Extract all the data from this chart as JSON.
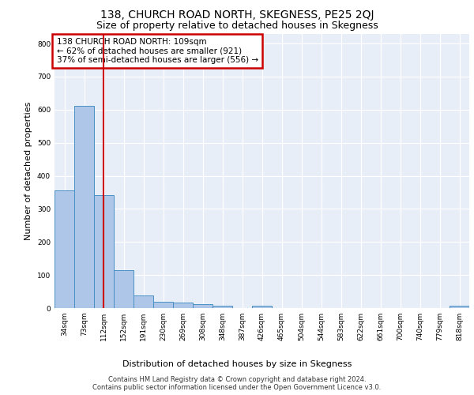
{
  "title": "138, CHURCH ROAD NORTH, SKEGNESS, PE25 2QJ",
  "subtitle": "Size of property relative to detached houses in Skegness",
  "xlabel": "Distribution of detached houses by size in Skegness",
  "ylabel": "Number of detached properties",
  "footer_line1": "Contains HM Land Registry data © Crown copyright and database right 2024.",
  "footer_line2": "Contains public sector information licensed under the Open Government Licence v3.0.",
  "annotation_line1": "138 CHURCH ROAD NORTH: 109sqm",
  "annotation_line2": "← 62% of detached houses are smaller (921)",
  "annotation_line3": "37% of semi-detached houses are larger (556) →",
  "bar_labels": [
    "34sqm",
    "73sqm",
    "112sqm",
    "152sqm",
    "191sqm",
    "230sqm",
    "269sqm",
    "308sqm",
    "348sqm",
    "387sqm",
    "426sqm",
    "465sqm",
    "504sqm",
    "544sqm",
    "583sqm",
    "622sqm",
    "661sqm",
    "700sqm",
    "740sqm",
    "779sqm",
    "818sqm"
  ],
  "bar_values": [
    357,
    612,
    341,
    115,
    38,
    20,
    17,
    12,
    7,
    0,
    7,
    0,
    0,
    0,
    0,
    0,
    0,
    0,
    0,
    0,
    7
  ],
  "bar_color": "#aec6e8",
  "bar_edge_color": "#4a90c4",
  "property_line_x": 1.97,
  "ylim": [
    0,
    830
  ],
  "plot_bg_color": "#e8eef8",
  "grid_color": "#ffffff",
  "annotation_box_edge_color": "#cc0000",
  "red_line_color": "#cc0000",
  "title_fontsize": 10,
  "subtitle_fontsize": 9,
  "ylabel_fontsize": 8,
  "xlabel_fontsize": 8,
  "tick_fontsize": 6.5,
  "footer_fontsize": 6,
  "annotation_fontsize": 7.5
}
